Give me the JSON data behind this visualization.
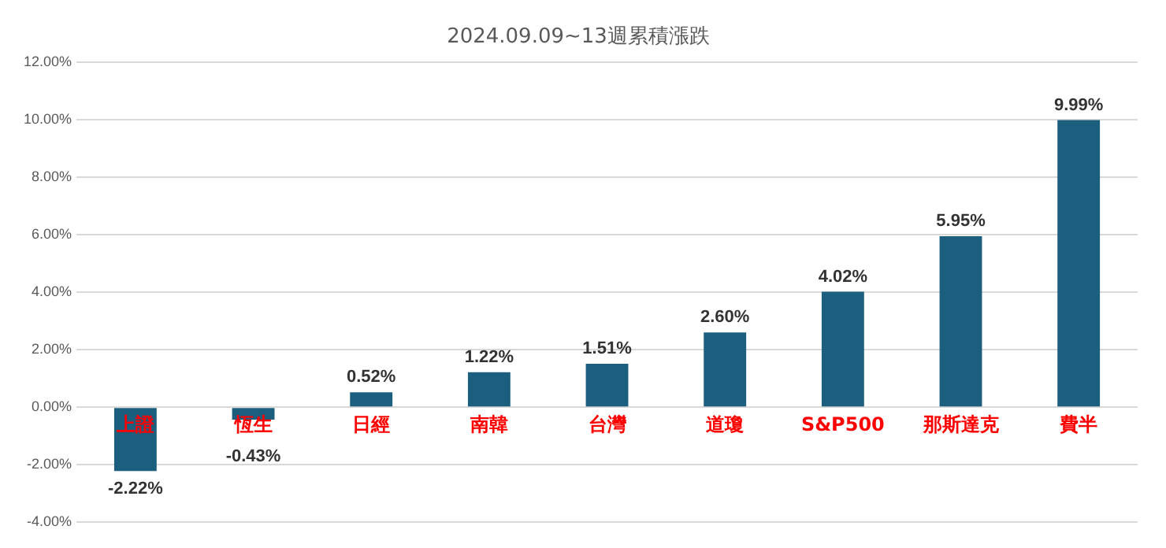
{
  "chart_data": {
    "type": "bar",
    "title": "2024.09.09~13週累積漲跌",
    "categories": [
      "上證",
      "恆生",
      "日經",
      "南韓",
      "台灣",
      "道瓊",
      "S&P500",
      "那斯達克",
      "費半"
    ],
    "values": [
      -2.22,
      -0.43,
      0.52,
      1.22,
      1.51,
      2.6,
      4.02,
      5.95,
      9.99
    ],
    "value_labels": [
      "-2.22%",
      "-0.43%",
      "0.52%",
      "1.22%",
      "1.51%",
      "2.60%",
      "4.02%",
      "5.95%",
      "9.99%"
    ],
    "color": "#1b5e7e",
    "ylim": [
      -4,
      12
    ],
    "yticks": [
      {
        "value": -4,
        "label": "-4.00%"
      },
      {
        "value": -2,
        "label": "-2.00%"
      },
      {
        "value": 0,
        "label": "0.00%"
      },
      {
        "value": 2,
        "label": "2.00%"
      },
      {
        "value": 4,
        "label": "4.00%"
      },
      {
        "value": 6,
        "label": "6.00%"
      },
      {
        "value": 8,
        "label": "8.00%"
      },
      {
        "value": 10,
        "label": "10.00%"
      },
      {
        "value": 12,
        "label": "12.00%"
      }
    ],
    "grid": "y",
    "legend": false
  }
}
